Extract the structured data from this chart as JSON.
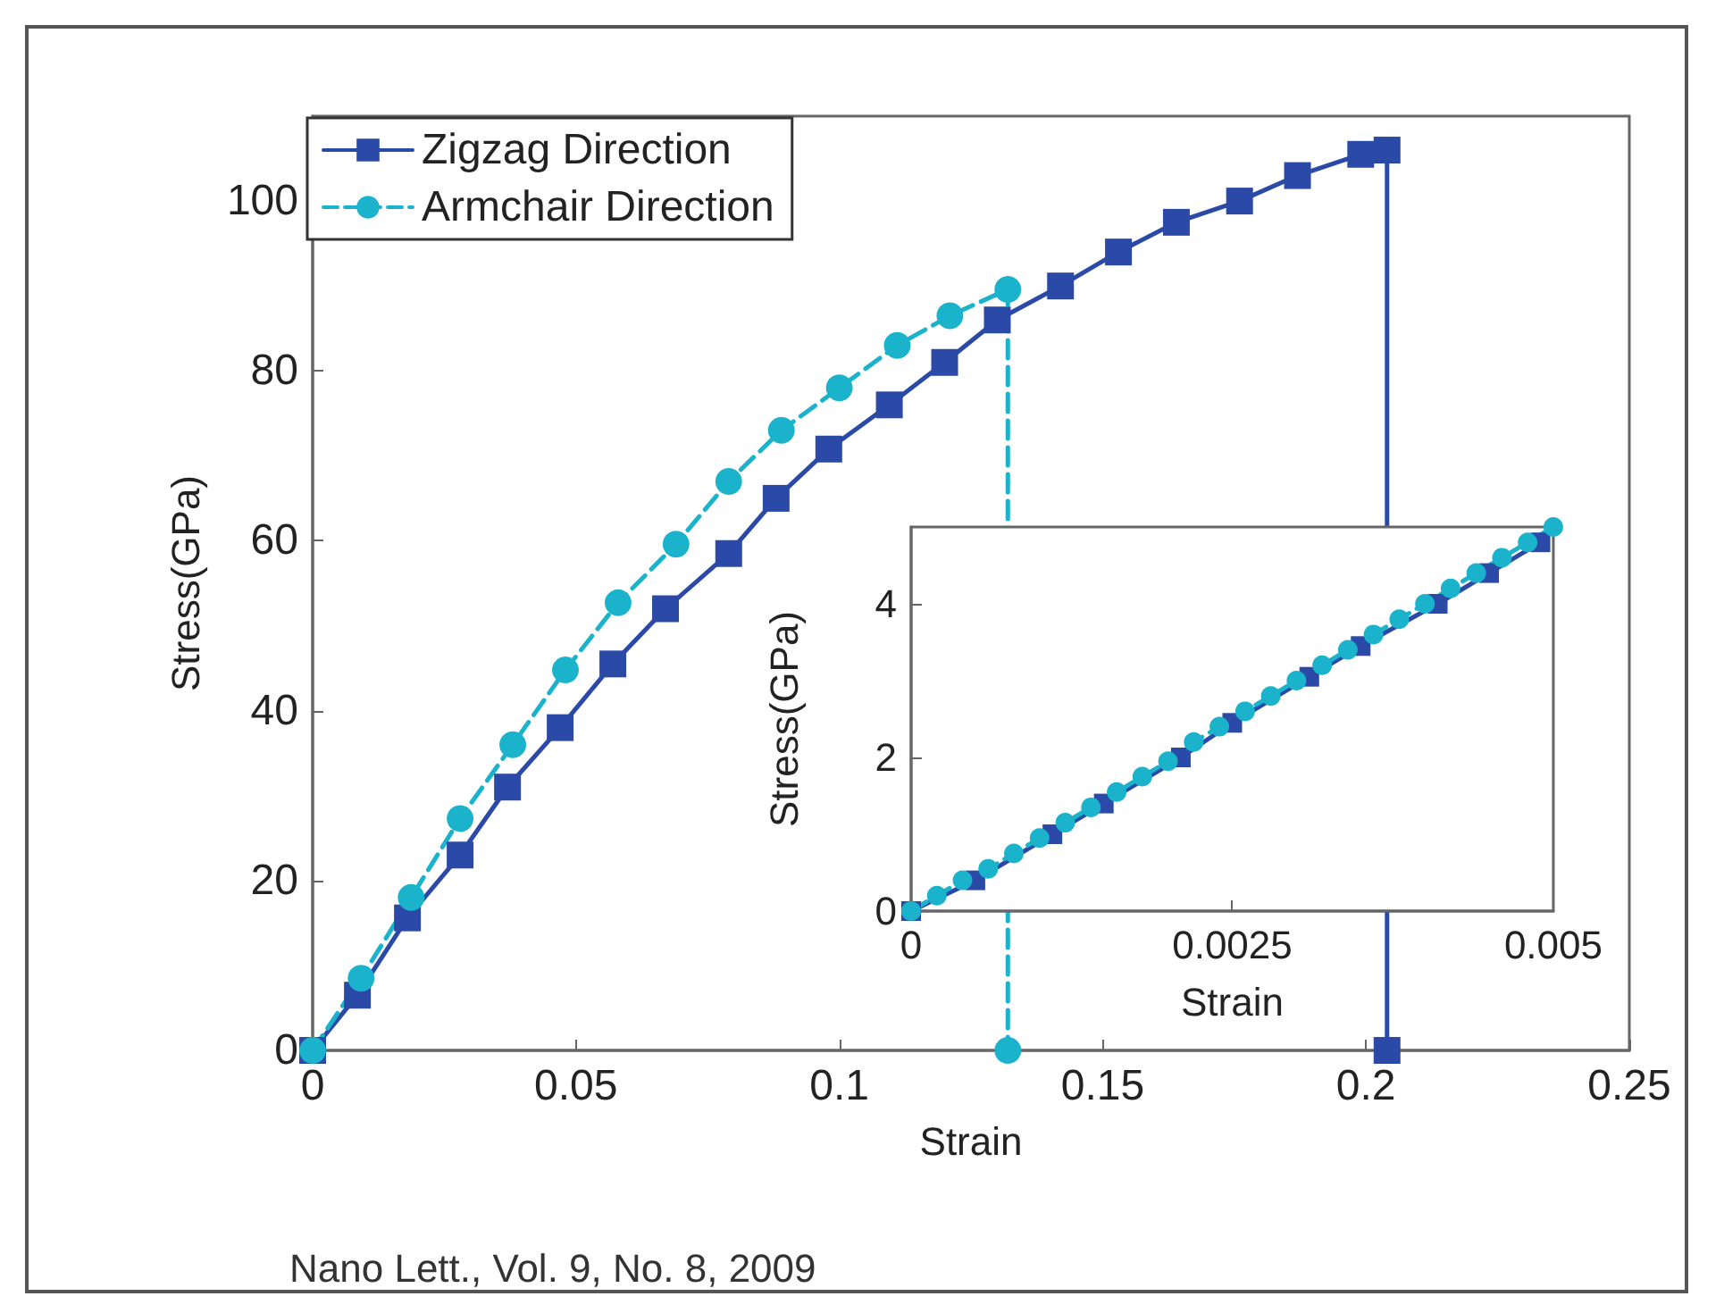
{
  "chart_data": [
    {
      "type": "line",
      "xlabel": "Strain",
      "ylabel": "Stress(GPa)",
      "xlim": [
        0,
        0.25
      ],
      "ylim": [
        0,
        110
      ],
      "xticks": [
        0,
        0.05,
        0.1,
        0.15,
        0.2,
        0.25
      ],
      "yticks": [
        0,
        20,
        40,
        60,
        80,
        100
      ],
      "legend": "top left",
      "annotations": [
        "Nano Lett., Vol. 9, No. 8, 2009"
      ],
      "series": [
        {
          "name": "Zigzag Direction",
          "color": "#2b4aa8",
          "marker": "square",
          "line_style": "solid",
          "x": [
            0,
            0.0085,
            0.018,
            0.028,
            0.037,
            0.047,
            0.057,
            0.067,
            0.079,
            0.088,
            0.098,
            0.1095,
            0.12,
            0.13,
            0.142,
            0.153,
            0.164,
            0.176,
            0.187,
            0.199,
            0.204,
            0.204
          ],
          "values": [
            0,
            6.5,
            15.6,
            23,
            31,
            38,
            45.5,
            52,
            58.5,
            65,
            70.8,
            76,
            81,
            86,
            90,
            94,
            97.5,
            100,
            103,
            105.5,
            106,
            0
          ]
        },
        {
          "name": "Armchair Direction",
          "color": "#1ab3cb",
          "marker": "circle",
          "line_style": "dashed",
          "x": [
            0,
            0.0092,
            0.0187,
            0.028,
            0.038,
            0.048,
            0.058,
            0.069,
            0.079,
            0.089,
            0.1,
            0.111,
            0.121,
            0.132,
            0.132
          ],
          "values": [
            0,
            8.5,
            18,
            27.3,
            36,
            44.8,
            52.7,
            59.6,
            67,
            73,
            78,
            83,
            86.5,
            89.6,
            0
          ]
        }
      ]
    },
    {
      "type": "line",
      "xlabel": "Strain",
      "ylabel": "Stress(GPa)",
      "xlim": [
        0,
        0.005
      ],
      "ylim": [
        0,
        5
      ],
      "xticks": [
        0,
        0.0025,
        0.005
      ],
      "yticks": [
        0,
        2,
        4
      ],
      "series": [
        {
          "color": "#2b4aa8",
          "marker": "square",
          "line_style": "solid",
          "x": [
            0,
            0.0005,
            0.0011,
            0.0015,
            0.0021,
            0.0025,
            0.0031,
            0.0035,
            0.0041,
            0.0045,
            0.0049
          ],
          "values": [
            0,
            0.4,
            1.0,
            1.4,
            2.0,
            2.45,
            3.05,
            3.45,
            4.0,
            4.4,
            4.8
          ]
        },
        {
          "color": "#1ab3cb",
          "marker": "circle",
          "line_style": "dashed",
          "x": [
            0,
            0.0002,
            0.0004,
            0.0006,
            0.0008,
            0.001,
            0.0012,
            0.0014,
            0.0016,
            0.0018,
            0.002,
            0.0022,
            0.0024,
            0.0026,
            0.0028,
            0.003,
            0.0032,
            0.0034,
            0.0036,
            0.0038,
            0.004,
            0.0042,
            0.0044,
            0.0046,
            0.0048,
            0.005
          ],
          "values": [
            0,
            0.2,
            0.4,
            0.55,
            0.75,
            0.95,
            1.15,
            1.35,
            1.55,
            1.75,
            1.95,
            2.2,
            2.4,
            2.6,
            2.8,
            3.0,
            3.2,
            3.4,
            3.6,
            3.8,
            4.0,
            4.2,
            4.4,
            4.6,
            4.8,
            5.0
          ]
        }
      ]
    }
  ]
}
